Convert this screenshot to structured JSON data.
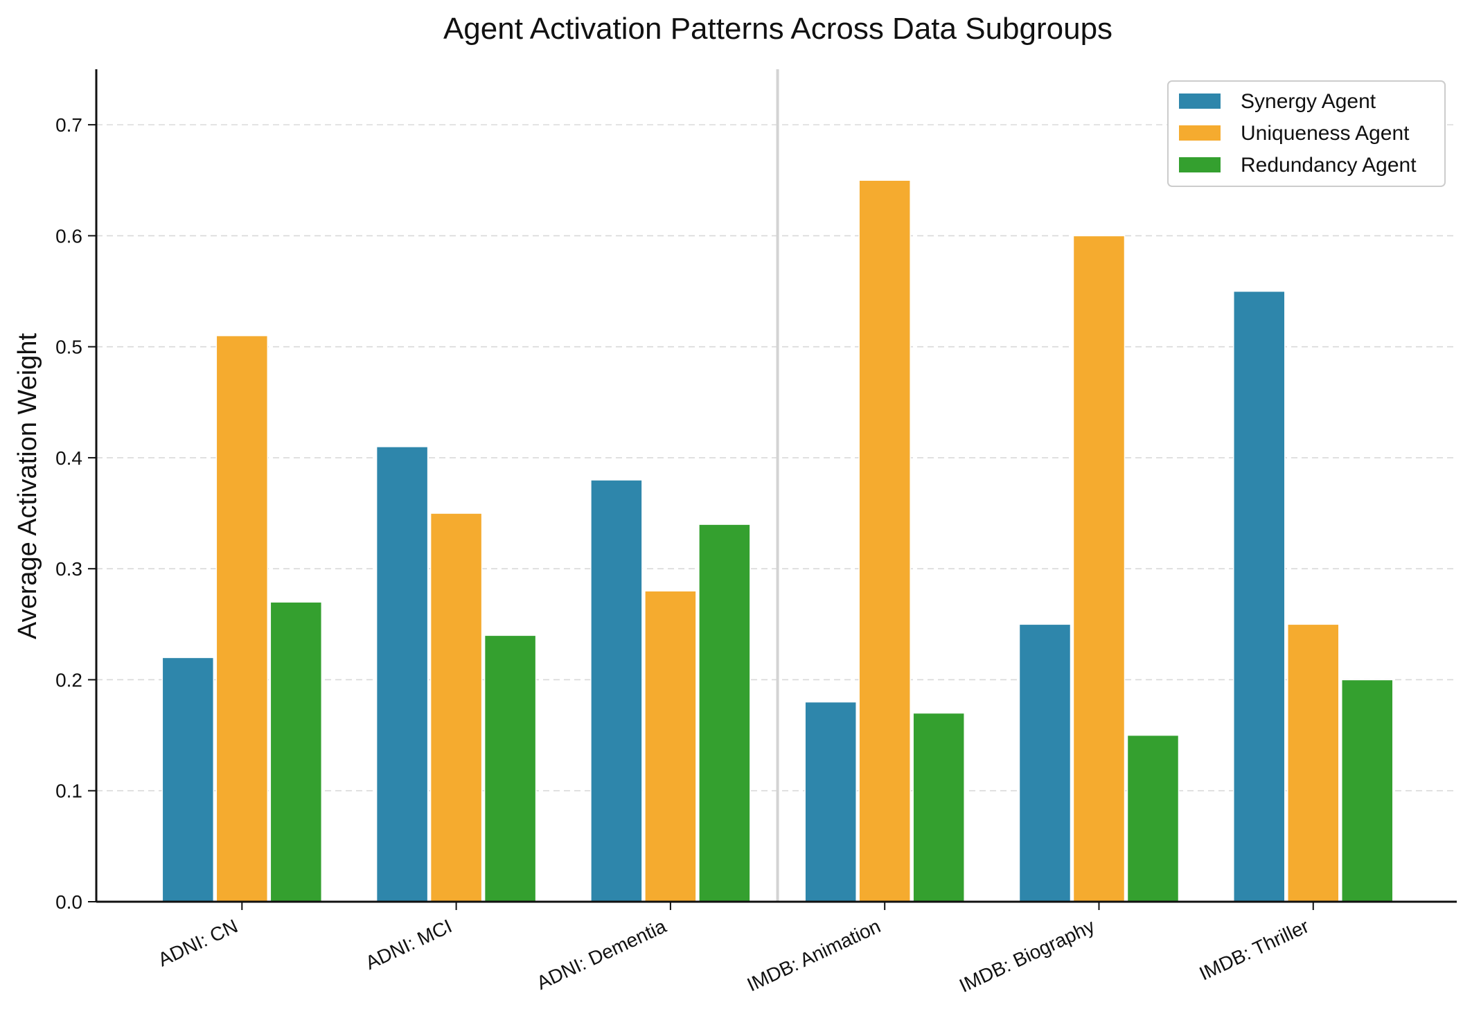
{
  "chart_data": {
    "type": "bar",
    "title": "Agent Activation Patterns Across Data Subgroups",
    "xlabel": "",
    "ylabel": "Average Activation Weight",
    "ylim": [
      0,
      0.75
    ],
    "yticks": [
      "0.0",
      "0.1",
      "0.2",
      "0.3",
      "0.4",
      "0.5",
      "0.6",
      "0.7"
    ],
    "grid": "horizontal dashed",
    "legend_position": "top-right",
    "categories": [
      "ADNI: CN",
      "ADNI: MCI",
      "ADNI: Dementia",
      "IMDB: Animation",
      "IMDB: Biography",
      "IMDB: Thriller"
    ],
    "separator_after_category_index": 2,
    "series": [
      {
        "name": "Synergy Agent",
        "color": "#2e86ab",
        "values": [
          0.22,
          0.41,
          0.38,
          0.18,
          0.25,
          0.55
        ]
      },
      {
        "name": "Uniqueness Agent",
        "color": "#f5ab2f",
        "values": [
          0.51,
          0.35,
          0.28,
          0.65,
          0.6,
          0.25
        ]
      },
      {
        "name": "Redundancy Agent",
        "color": "#34a02f",
        "values": [
          0.27,
          0.24,
          0.34,
          0.17,
          0.15,
          0.2
        ]
      }
    ]
  }
}
